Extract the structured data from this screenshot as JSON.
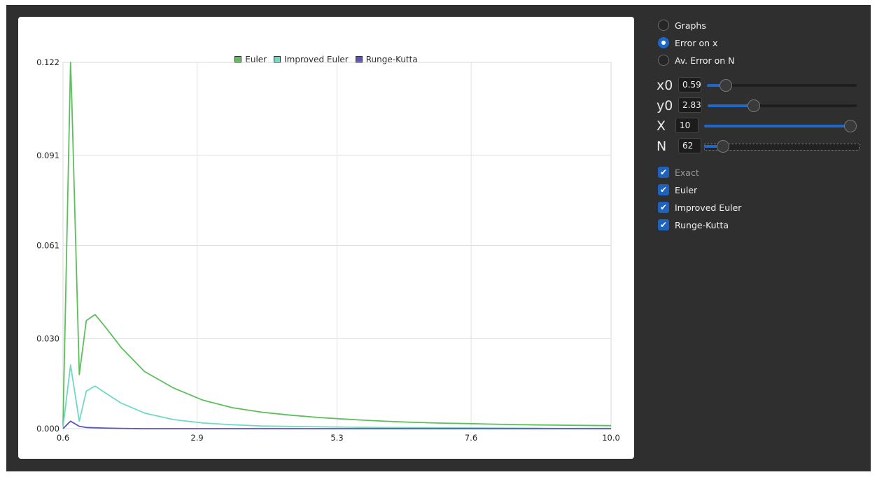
{
  "colors": {
    "euler": "#5cbf5c",
    "improved_euler": "#6fd9c4",
    "runge_kutta": "#5a56b8",
    "accent": "#1f67c9",
    "window_bg": "#2f2f2f"
  },
  "chart_data": {
    "type": "line",
    "title": "",
    "xlabel": "",
    "ylabel": "",
    "xlim": [
      0.6,
      10.0
    ],
    "ylim": [
      0.0,
      0.122
    ],
    "x_ticks": [
      "0.6",
      "2.9",
      "5.3",
      "7.6",
      "10.0"
    ],
    "y_ticks": [
      "0.000",
      "0.030",
      "0.061",
      "0.091",
      "0.122"
    ],
    "grid": true,
    "legend_position": "top-center",
    "series": [
      {
        "name": "Euler",
        "x": [
          0.6,
          0.73,
          0.75,
          0.88,
          1.0,
          1.15,
          1.32,
          1.6,
          2.0,
          2.5,
          3.0,
          3.5,
          4.0,
          4.5,
          5.0,
          5.5,
          6.0,
          6.5,
          7.0,
          7.5,
          8.0,
          8.5,
          9.0,
          9.5,
          10.0
        ],
        "y": [
          0.001,
          0.122,
          0.11,
          0.018,
          0.036,
          0.038,
          0.034,
          0.027,
          0.019,
          0.0135,
          0.0095,
          0.007,
          0.0055,
          0.0045,
          0.0037,
          0.0031,
          0.0026,
          0.0022,
          0.0019,
          0.0017,
          0.0015,
          0.0013,
          0.0012,
          0.0011,
          0.001
        ]
      },
      {
        "name": "Improved Euler",
        "x": [
          0.6,
          0.73,
          0.88,
          1.0,
          1.15,
          1.32,
          1.6,
          2.0,
          2.5,
          3.0,
          3.5,
          4.0,
          5.0,
          6.0,
          7.0,
          8.0,
          9.0,
          10.0
        ],
        "y": [
          0.0005,
          0.0212,
          0.0025,
          0.0125,
          0.0142,
          0.012,
          0.0085,
          0.0052,
          0.003,
          0.0019,
          0.0013,
          0.0009,
          0.0006,
          0.0004,
          0.0003,
          0.0002,
          0.0001,
          0.0001
        ]
      },
      {
        "name": "Runge-Kutta",
        "x": [
          0.6,
          0.73,
          0.88,
          1.0,
          1.3,
          1.6,
          2.0,
          3.0,
          5.0,
          7.5,
          10.0
        ],
        "y": [
          0.0,
          0.0025,
          0.0008,
          0.0004,
          0.0002,
          0.0001,
          0.0,
          0.0,
          0.0,
          0.0,
          0.0
        ]
      }
    ]
  },
  "panel": {
    "radios": [
      {
        "label": "Graphs",
        "checked": false
      },
      {
        "label": "Error on x",
        "checked": true
      },
      {
        "label": "Av. Error on N",
        "checked": false
      }
    ],
    "params": [
      {
        "label": "x0",
        "value": "0.59",
        "level": 0.09
      },
      {
        "label": "y0",
        "value": "2.83",
        "level": 0.29
      },
      {
        "label": "X",
        "value": "10",
        "level": 1.0
      },
      {
        "label": "N",
        "value": "62",
        "level": 0.09
      }
    ],
    "checks": [
      {
        "label": "Exact",
        "checked": true,
        "disabled": true
      },
      {
        "label": "Euler",
        "checked": true,
        "disabled": false
      },
      {
        "label": "Improved Euler",
        "checked": true,
        "disabled": false
      },
      {
        "label": "Runge-Kutta",
        "checked": true,
        "disabled": false
      }
    ]
  }
}
